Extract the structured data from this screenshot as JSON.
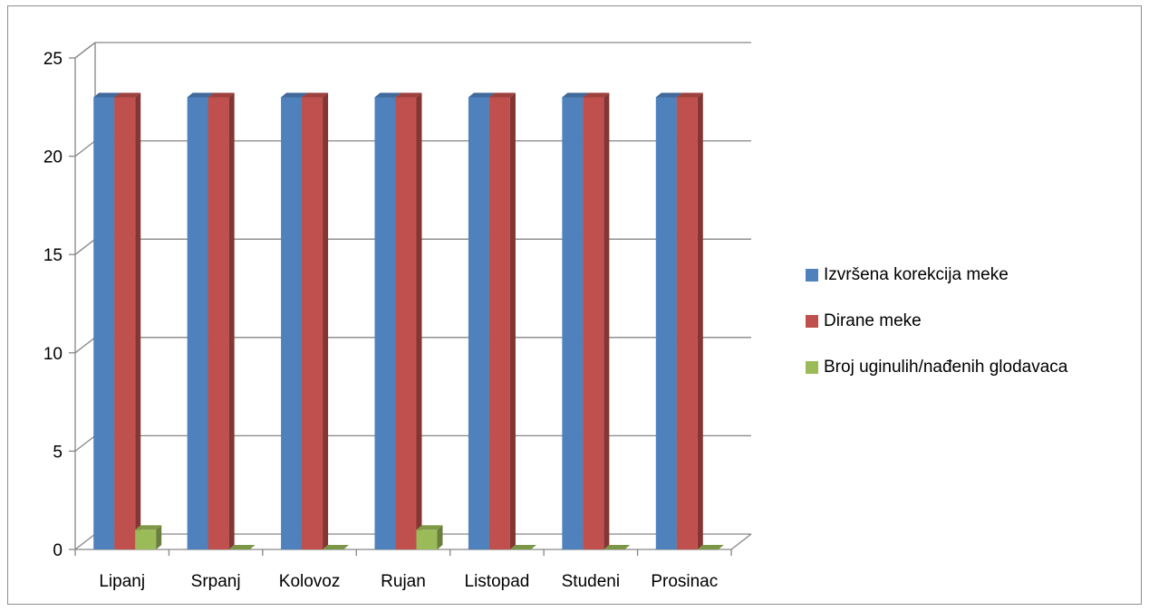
{
  "chart_data": {
    "type": "bar",
    "categories": [
      "Lipanj",
      "Srpanj",
      "Kolovoz",
      "Rujan",
      "Listopad",
      "Studeni",
      "Prosinac"
    ],
    "series": [
      {
        "name": "Izvršena korekcija meke",
        "color": "#4f81bd",
        "values": [
          23,
          23,
          23,
          23,
          23,
          23,
          23
        ]
      },
      {
        "name": "Dirane meke",
        "color": "#c0504d",
        "values": [
          23,
          23,
          23,
          23,
          23,
          23,
          23
        ]
      },
      {
        "name": "Broj uginulih/nađenih glodavaca",
        "color": "#9bbb59",
        "values": [
          1,
          0,
          0,
          1,
          0,
          0,
          0
        ]
      }
    ],
    "ylim": [
      0,
      25
    ],
    "yticks": [
      "0",
      "5",
      "10",
      "15",
      "20",
      "25"
    ],
    "grid": true,
    "legend_position": "right",
    "style": "3d-clustered-column"
  }
}
